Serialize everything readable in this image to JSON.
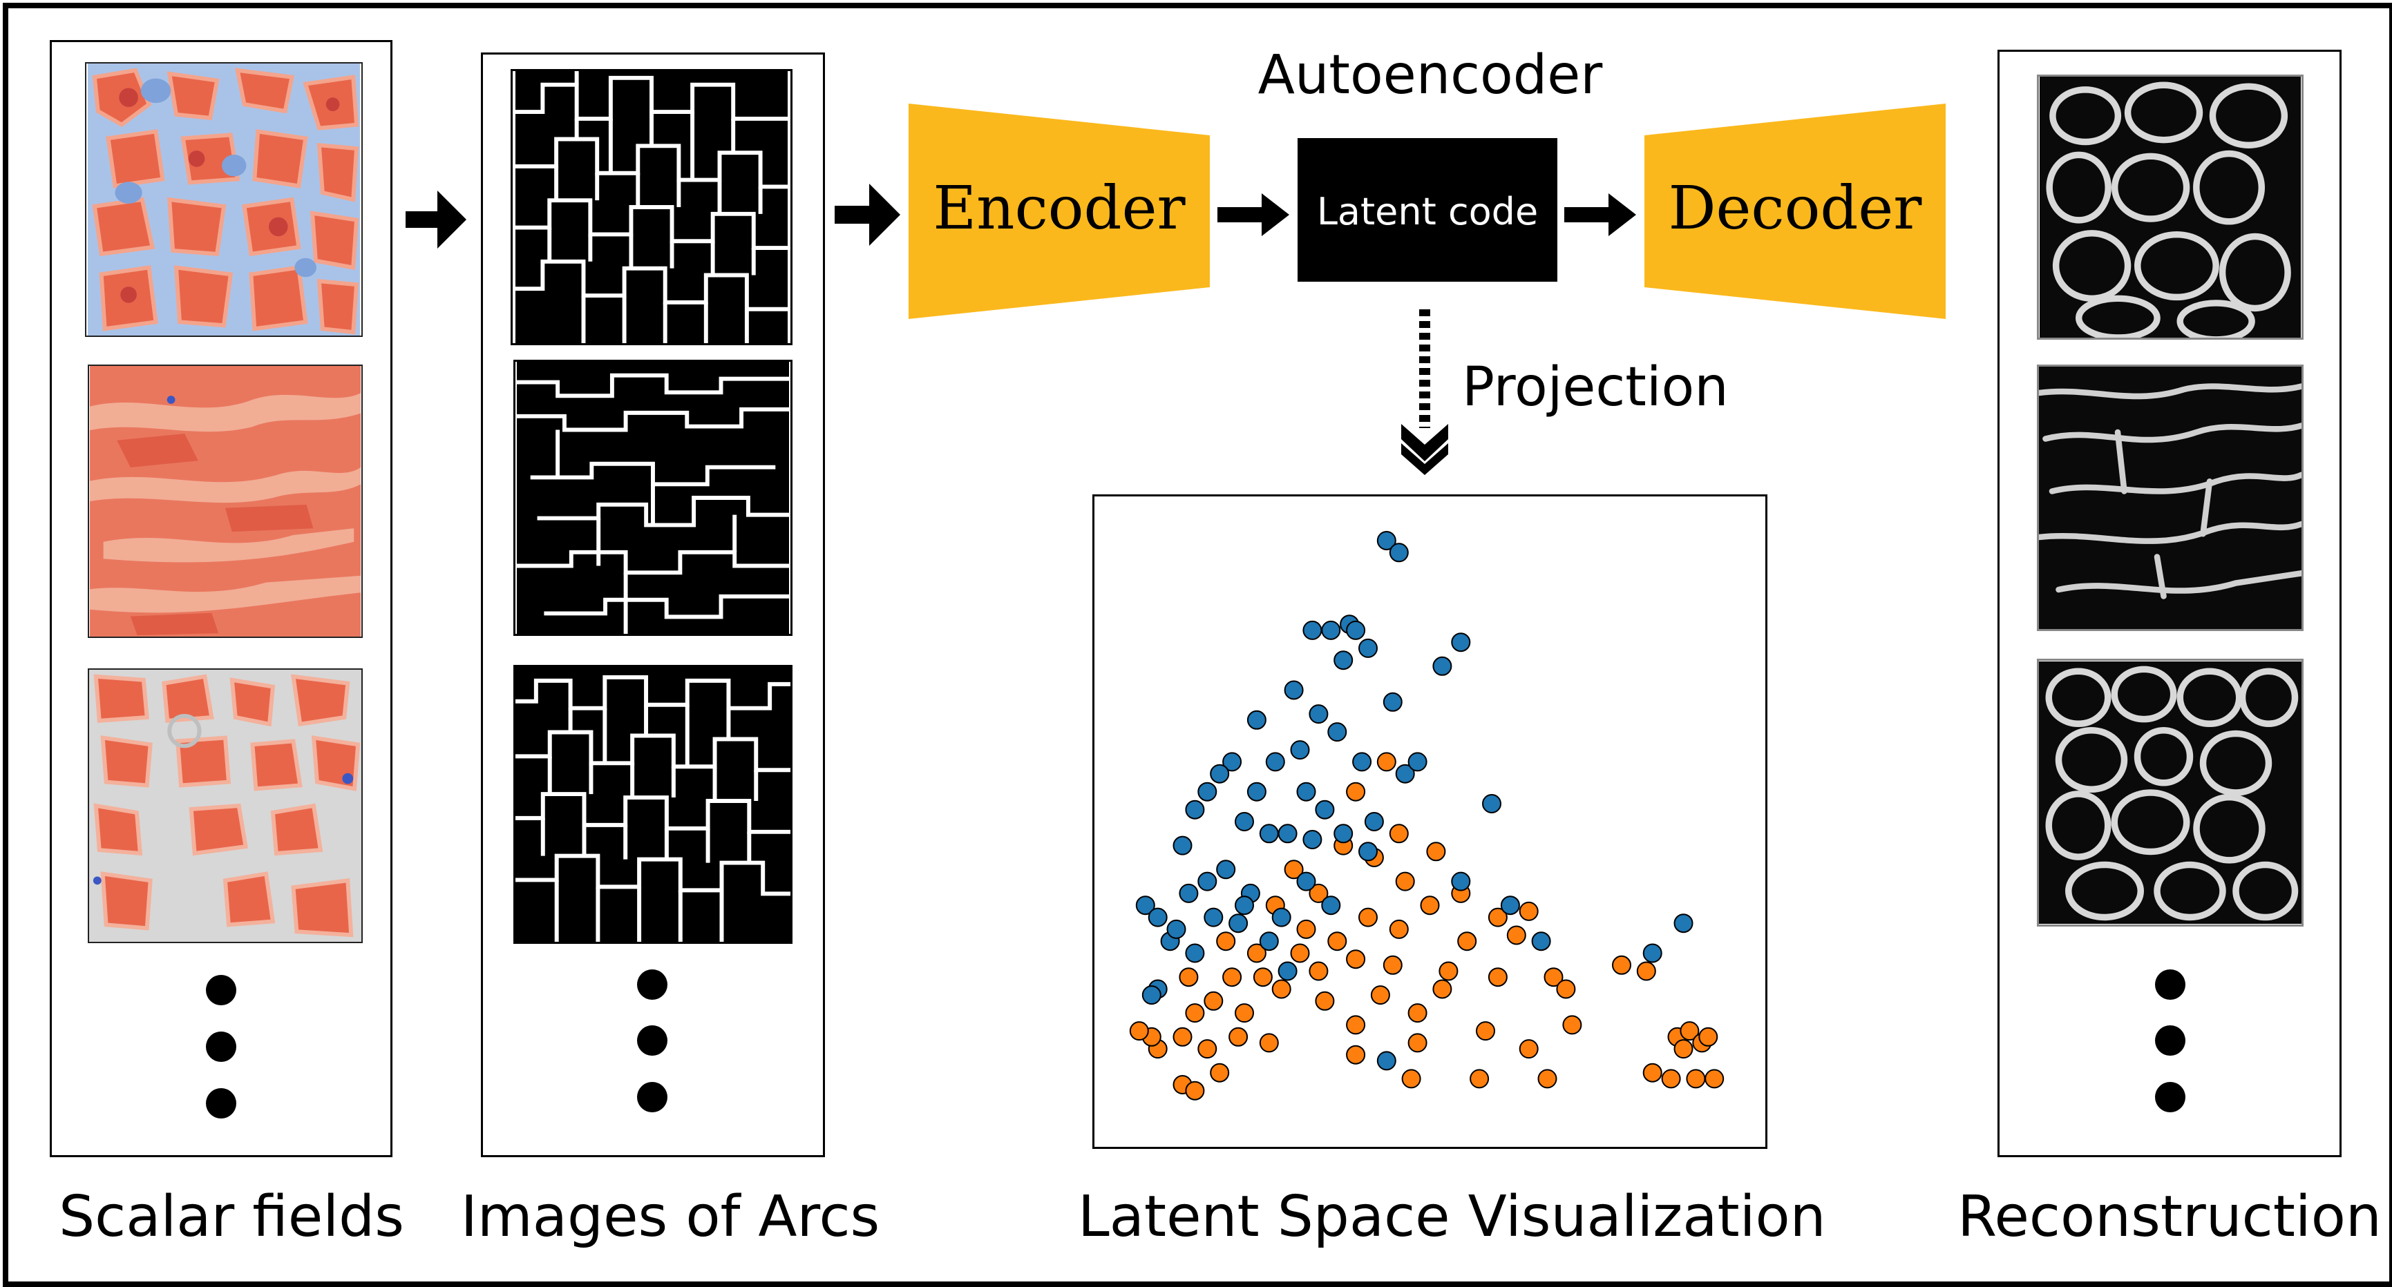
{
  "captions": {
    "scalar_fields": "Scalar fields",
    "images_of_arcs": "Images of Arcs",
    "latent_space": "Latent Space Visualization",
    "reconstruction": "Reconstruction"
  },
  "autoencoder": {
    "title": "Autoencoder",
    "encoder_label": "Encoder",
    "latent_label": "Latent code",
    "decoder_label": "Decoder",
    "projection_label": "Projection"
  },
  "colors": {
    "encoder_fill": "#fbb81c",
    "decoder_fill": "#fbb81c",
    "latent_fill": "#000000",
    "series_blue": "#1f77b4",
    "series_orange": "#ff7f0e",
    "scalar_red": "#e8654a",
    "scalar_blue": "#9fbbe3"
  },
  "chart_data": {
    "type": "scatter",
    "title": "",
    "xlabel": "",
    "ylabel": "",
    "xlim": [
      0,
      100
    ],
    "ylim": [
      0,
      100
    ],
    "grid": false,
    "legend": "none",
    "series": [
      {
        "color": "#1f77b4",
        "points": [
          [
            43,
            97
          ],
          [
            45,
            95
          ],
          [
            37,
            83
          ],
          [
            38,
            82
          ],
          [
            34,
            82
          ],
          [
            31,
            82
          ],
          [
            55,
            80
          ],
          [
            52,
            76
          ],
          [
            36,
            77
          ],
          [
            40,
            79
          ],
          [
            28,
            72
          ],
          [
            32,
            68
          ],
          [
            35,
            65
          ],
          [
            44,
            70
          ],
          [
            22,
            67
          ],
          [
            18,
            60
          ],
          [
            16,
            58
          ],
          [
            14,
            55
          ],
          [
            12,
            52
          ],
          [
            25,
            60
          ],
          [
            30,
            55
          ],
          [
            20,
            50
          ],
          [
            24,
            48
          ],
          [
            10,
            46
          ],
          [
            4,
            36
          ],
          [
            6,
            34
          ],
          [
            8,
            30
          ],
          [
            12,
            28
          ],
          [
            6,
            22
          ],
          [
            5,
            21
          ],
          [
            30,
            40
          ],
          [
            34,
            36
          ],
          [
            26,
            34
          ],
          [
            21,
            38
          ],
          [
            17,
            42
          ],
          [
            14,
            40
          ],
          [
            11,
            38
          ],
          [
            19,
            33
          ],
          [
            24,
            30
          ],
          [
            29,
            62
          ],
          [
            39,
            60
          ],
          [
            46,
            58
          ],
          [
            48,
            60
          ],
          [
            41,
            50
          ],
          [
            36,
            48
          ],
          [
            22,
            55
          ],
          [
            27,
            48
          ],
          [
            33,
            52
          ],
          [
            40,
            45
          ],
          [
            15,
            34
          ],
          [
            9,
            32
          ],
          [
            60,
            53
          ],
          [
            55,
            40
          ],
          [
            63,
            36
          ],
          [
            68,
            30
          ],
          [
            86,
            28
          ],
          [
            91,
            33
          ],
          [
            43,
            10
          ],
          [
            27,
            25
          ],
          [
            20,
            36
          ],
          [
            31,
            47
          ]
        ]
      },
      {
        "color": "#ff7f0e",
        "points": [
          [
            43,
            60
          ],
          [
            38,
            55
          ],
          [
            41,
            44
          ],
          [
            46,
            40
          ],
          [
            45,
            48
          ],
          [
            36,
            46
          ],
          [
            28,
            42
          ],
          [
            32,
            38
          ],
          [
            25,
            36
          ],
          [
            30,
            32
          ],
          [
            22,
            28
          ],
          [
            18,
            24
          ],
          [
            15,
            20
          ],
          [
            12,
            18
          ],
          [
            10,
            14
          ],
          [
            6,
            12
          ],
          [
            5,
            14
          ],
          [
            3,
            15
          ],
          [
            14,
            12
          ],
          [
            20,
            18
          ],
          [
            26,
            22
          ],
          [
            33,
            20
          ],
          [
            38,
            16
          ],
          [
            32,
            25
          ],
          [
            38,
            27
          ],
          [
            44,
            26
          ],
          [
            50,
            36
          ],
          [
            51,
            45
          ],
          [
            56,
            30
          ],
          [
            55,
            38
          ],
          [
            61,
            34
          ],
          [
            64,
            31
          ],
          [
            66,
            35
          ],
          [
            61,
            24
          ],
          [
            70,
            24
          ],
          [
            72,
            22
          ],
          [
            73,
            16
          ],
          [
            81,
            26
          ],
          [
            66,
            12
          ],
          [
            59,
            15
          ],
          [
            52,
            22
          ],
          [
            48,
            18
          ],
          [
            42,
            21
          ],
          [
            35,
            30
          ],
          [
            40,
            34
          ],
          [
            45,
            32
          ],
          [
            29,
            28
          ],
          [
            23,
            24
          ],
          [
            17,
            30
          ],
          [
            11,
            24
          ],
          [
            85,
            25
          ],
          [
            90,
            14
          ],
          [
            92,
            15
          ],
          [
            94,
            13
          ],
          [
            91,
            12
          ],
          [
            95,
            14
          ],
          [
            86,
            8
          ],
          [
            89,
            7
          ],
          [
            93,
            7
          ],
          [
            96,
            7
          ],
          [
            47,
            7
          ],
          [
            58,
            7
          ],
          [
            69,
            7
          ],
          [
            10,
            6
          ],
          [
            12,
            5
          ],
          [
            16,
            8
          ],
          [
            38,
            11
          ],
          [
            48,
            13
          ],
          [
            53,
            25
          ],
          [
            24,
            13
          ],
          [
            19,
            14
          ]
        ]
      }
    ]
  }
}
